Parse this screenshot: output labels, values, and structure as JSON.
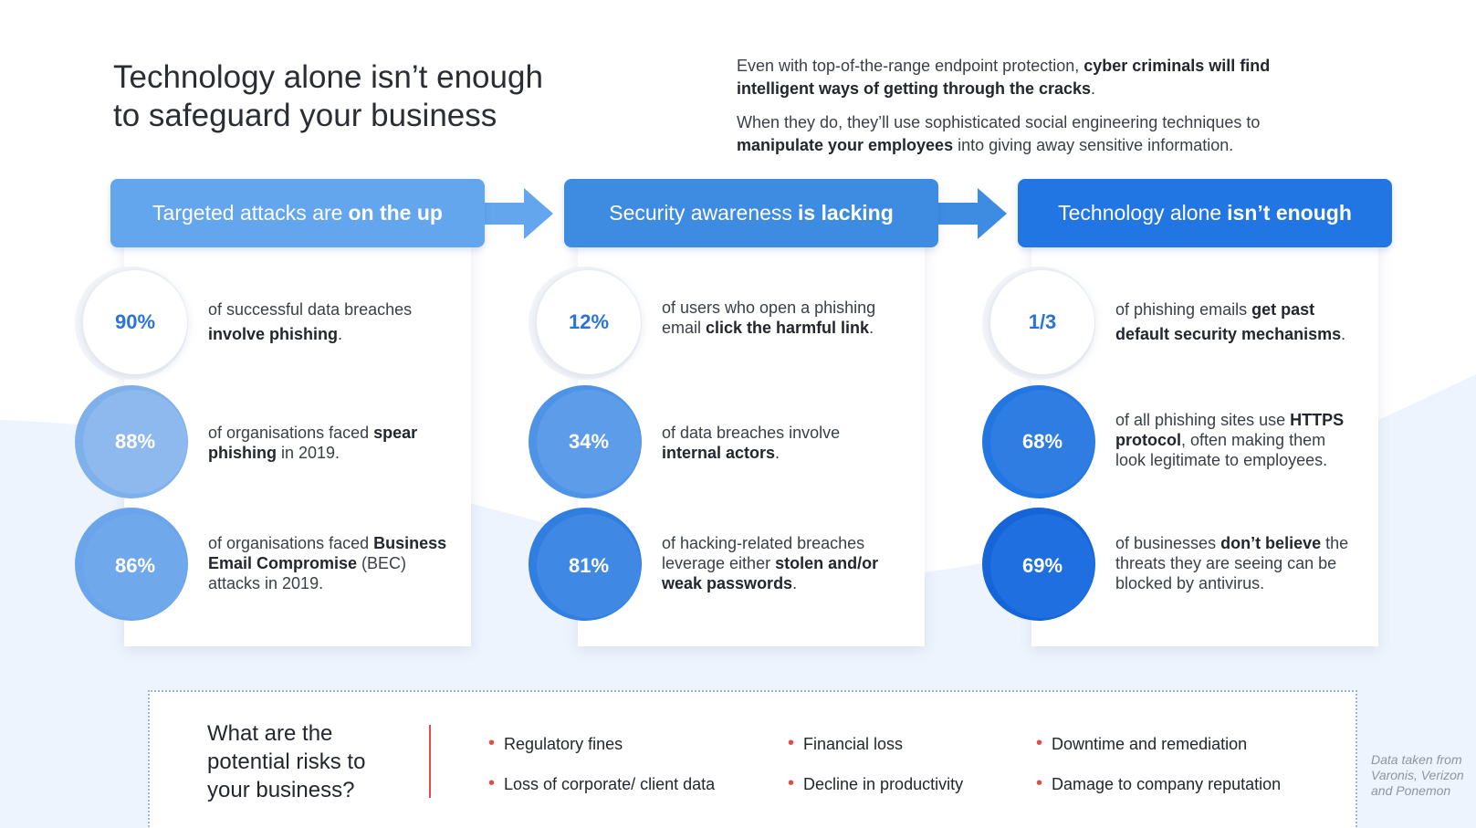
{
  "title": {
    "line1": "Technology alone isn’t enough",
    "line2": "to safeguard your business"
  },
  "intro": {
    "p1_text": "Even with top-of-the-range endpoint protection, ",
    "p1_bold": "cyber criminals will find intelligent ways of getting through the cracks",
    "p1_end": ".",
    "p2_text": "When they do, they’ll use sophisticated social engineering techniques to ",
    "p2_bold": "manipulate your employees",
    "p2_end": " into giving away sensitive information."
  },
  "columns": [
    {
      "header_text": "Targeted attacks are",
      "header_bold": "on the up",
      "stats": [
        {
          "value": "90%",
          "text": "of successful data breaches ",
          "bold": "involve phishing",
          "end": "."
        },
        {
          "value": "88%",
          "text": "of organisations faced ",
          "bold": "spear phishing",
          "end": " in 2019."
        },
        {
          "value": "86%",
          "text": "of organisations faced ",
          "bold": "Business Email Compromise",
          "end": " (BEC) attacks in 2019."
        }
      ]
    },
    {
      "header_text": "Security awareness",
      "header_bold": "is lacking",
      "stats": [
        {
          "value": "12%",
          "text": "of users who open a phishing email ",
          "bold": "click the harmful link",
          "end": "."
        },
        {
          "value": "34%",
          "text": "of data breaches involve ",
          "bold": "internal actors",
          "end": "."
        },
        {
          "value": "81%",
          "text": "of hacking-related breaches leverage either ",
          "bold": "stolen and/or weak passwords",
          "end": "."
        }
      ]
    },
    {
      "header_text": "Technology alone",
      "header_bold": "isn’t enough",
      "stats": [
        {
          "value": "1/3",
          "text": "of phishing emails ",
          "bold": "get past default security mechanisms",
          "end": "."
        },
        {
          "value": "68%",
          "text": "of all phishing sites use ",
          "bold": "HTTPS protocol",
          "end": ", often making them look legitimate to employees."
        },
        {
          "value": "69%",
          "text": "of businesses ",
          "bold": "don’t believe",
          "end": " the threats they are seeing can be blocked by antivirus."
        }
      ]
    }
  ],
  "risks": {
    "question": "What are the potential risks to your business?",
    "items": [
      "Regulatory fines",
      "Financial loss",
      "Downtime and remediation",
      "Loss of corporate/ client data",
      "Decline in productivity",
      "Damage to company reputation"
    ]
  },
  "source": "Data taken from Varonis, Verizon and Ponemon",
  "colors": {
    "header1": "#64a6ee",
    "header2": "#3e8be2",
    "header3": "#2176e4",
    "bullet": "#e24b4b"
  }
}
